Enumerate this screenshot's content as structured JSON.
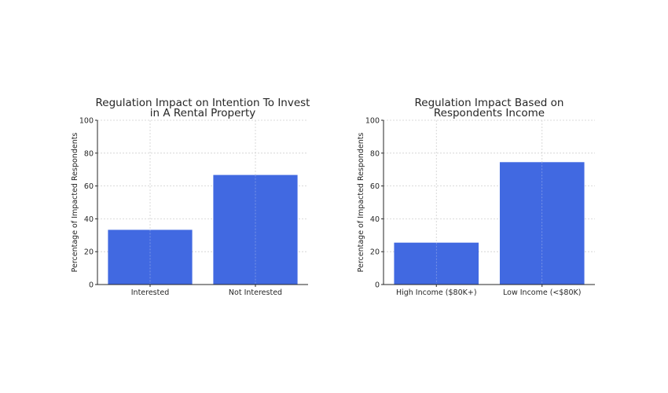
{
  "chart_data": [
    {
      "type": "bar",
      "title": [
        "Regulation Impact on Intention To Invest",
        "in A Rental Property"
      ],
      "categories": [
        "Interested",
        "Not Interested"
      ],
      "values": [
        33.3,
        66.7
      ],
      "ylabel": "Percentage of Impacted Respondents",
      "ylim": [
        0,
        100
      ],
      "yticks": [
        0,
        20,
        40,
        60,
        80,
        100
      ],
      "grid": true,
      "bar_color": "#4169e1"
    },
    {
      "type": "bar",
      "title": [
        "Regulation Impact Based on",
        "Respondents Income"
      ],
      "categories": [
        "High Income ($80K+)",
        "Low Income (<$80K)"
      ],
      "values": [
        25.5,
        74.5
      ],
      "ylabel": "Percentage of Impacted Respondents",
      "ylim": [
        0,
        100
      ],
      "yticks": [
        0,
        20,
        40,
        60,
        80,
        100
      ],
      "grid": true,
      "bar_color": "#4169e1"
    }
  ]
}
